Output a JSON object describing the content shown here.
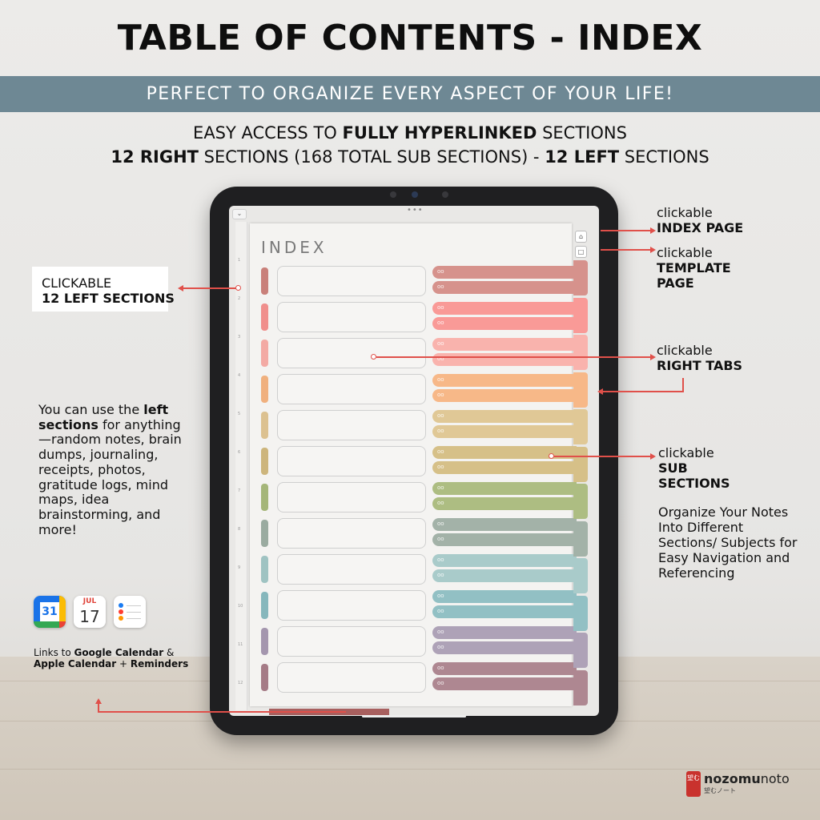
{
  "header": {
    "title": "TABLE OF CONTENTS - INDEX",
    "banner": "PERFECT TO ORGANIZE EVERY ASPECT OF YOUR LIFE!",
    "line1_pre": "EASY ACCESS TO ",
    "line1_bold": "FULLY HYPERLINKED",
    "line1_post": " SECTIONS",
    "line2_bold1": "12 RIGHT",
    "line2_mid": " SECTIONS (168 TOTAL SUB SECTIONS) - ",
    "line2_bold2": "12 LEFT",
    "line2_post": " SECTIONS"
  },
  "tablet": {
    "index_title": "INDEX",
    "sub_link_glyph": "oo",
    "left_numbers": [
      "1",
      "2",
      "3",
      "4",
      "5",
      "6",
      "7",
      "8",
      "9",
      "10",
      "11",
      "12"
    ],
    "row_colors": [
      "#c9807a",
      "#f08f8c",
      "#f3aaa4",
      "#f0b07e",
      "#dcc190",
      "#cdb57c",
      "#a5b679",
      "#9aaba0",
      "#9fc3c2",
      "#86b7bc",
      "#a496ae",
      "#a57b86"
    ],
    "pill_colors": [
      "#d6928c",
      "#f99a97",
      "#f9b3ad",
      "#f7b888",
      "#e0c896",
      "#d6c088",
      "#adbd82",
      "#a3b2a8",
      "#a9cbca",
      "#92c0c4",
      "#aea2b7",
      "#ae8791"
    ],
    "tab_colors": [
      "#d6928c",
      "#f99a97",
      "#f9b3ad",
      "#f7b888",
      "#e0c896",
      "#d6c088",
      "#adbd82",
      "#a3b2a8",
      "#a9cbca",
      "#92c0c4",
      "#aea2b7",
      "#ae8791"
    ],
    "home_icon": "house-icon",
    "template_icon": "page-icon"
  },
  "annotations": {
    "left_sections_line1": "CLICKABLE",
    "left_sections_line2": "12 LEFT SECTIONS",
    "index_page_line1": "clickable",
    "index_page_line2": "INDEX PAGE",
    "template_line1": "clickable",
    "template_line2": "TEMPLATE",
    "template_line3": "PAGE",
    "right_tabs_line1": "clickable",
    "right_tabs_line2": "RIGHT TABS",
    "sub_line1": "clickable",
    "sub_line2": "SUB",
    "sub_line3": "SECTIONS",
    "organize": "Organize Your Notes Into Different Sections/ Subjects for Easy Navigation and Referencing",
    "left_desc_pre": "You can use the ",
    "left_desc_bold": "left sections",
    "left_desc_post": " for anything—random notes, brain dumps, journaling, receipts, photos, gratitude logs, mind maps, idea brainstorming, and more!",
    "links_pre": "Links to ",
    "links_bold1": "Google Calendar",
    "links_mid": " & ",
    "links_bold2": "Apple Calendar",
    "links_mid2": " + ",
    "links_bold3": "Reminders"
  },
  "apps": {
    "google_calendar_day": "31",
    "apple_calendar_month": "JUL",
    "apple_calendar_day": "17",
    "icons": [
      "google-calendar-icon",
      "apple-calendar-icon",
      "reminders-icon"
    ]
  },
  "brand": {
    "name_bold": "nozomu",
    "name_rest": "noto",
    "tagline": "望むノート",
    "logo_text": "望む"
  }
}
